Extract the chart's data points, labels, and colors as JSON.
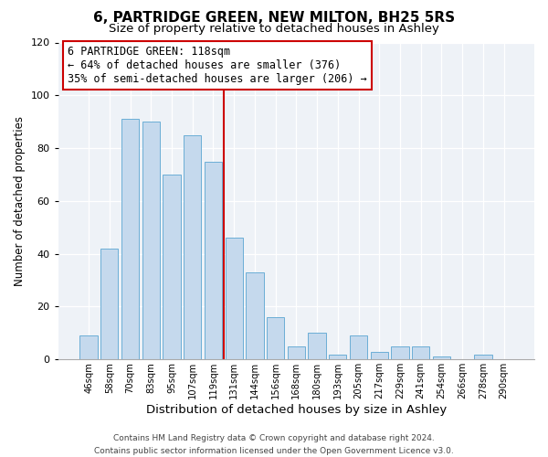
{
  "title": "6, PARTRIDGE GREEN, NEW MILTON, BH25 5RS",
  "subtitle": "Size of property relative to detached houses in Ashley",
  "xlabel": "Distribution of detached houses by size in Ashley",
  "ylabel": "Number of detached properties",
  "bar_color": "#c5d9ed",
  "bar_edge_color": "#6baed6",
  "background_color": "#eef2f7",
  "categories": [
    "46sqm",
    "58sqm",
    "70sqm",
    "83sqm",
    "95sqm",
    "107sqm",
    "119sqm",
    "131sqm",
    "144sqm",
    "156sqm",
    "168sqm",
    "180sqm",
    "193sqm",
    "205sqm",
    "217sqm",
    "229sqm",
    "241sqm",
    "254sqm",
    "266sqm",
    "278sqm",
    "290sqm"
  ],
  "values": [
    9,
    42,
    91,
    90,
    70,
    85,
    75,
    46,
    33,
    16,
    5,
    10,
    2,
    9,
    3,
    5,
    5,
    1,
    0,
    2,
    0
  ],
  "ylim": [
    0,
    120
  ],
  "yticks": [
    0,
    20,
    40,
    60,
    80,
    100,
    120
  ],
  "vline_idx": 6,
  "vline_color": "#cc0000",
  "annotation_line1": "6 PARTRIDGE GREEN: 118sqm",
  "annotation_line2": "← 64% of detached houses are smaller (376)",
  "annotation_line3": "35% of semi-detached houses are larger (206) →",
  "annotation_fontsize": 8.5,
  "footnote": "Contains HM Land Registry data © Crown copyright and database right 2024.\nContains public sector information licensed under the Open Government Licence v3.0.",
  "title_fontsize": 11,
  "subtitle_fontsize": 9.5,
  "xlabel_fontsize": 9.5,
  "ylabel_fontsize": 8.5
}
